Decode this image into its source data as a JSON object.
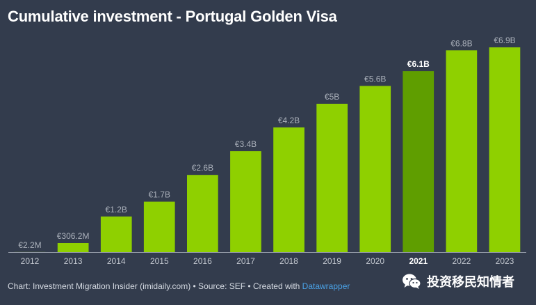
{
  "title": "Cumulative investment - Portugal Golden Visa",
  "footer": {
    "prefix": "Chart: Investment Migration Insider (imidaily.com) • Source: SEF • Created with ",
    "link": "Datawrapper"
  },
  "watermark": {
    "icon": "wechat-icon",
    "text": "投资移民知情者"
  },
  "colors": {
    "background": "#333c4d",
    "bar": "#8fd000",
    "bar_highlight": "#5f9e00",
    "value_label": "#a9afb9",
    "value_label_highlight": "#ffffff",
    "axis_label": "#c3c8d0",
    "axis_label_highlight": "#ffffff",
    "baseline": "#9aa1ad"
  },
  "chart_data": {
    "type": "bar",
    "title": "Cumulative investment - Portugal Golden Visa",
    "categories": [
      "2012",
      "2013",
      "2014",
      "2015",
      "2016",
      "2017",
      "2018",
      "2019",
      "2020",
      "2021",
      "2022",
      "2023"
    ],
    "values": [
      0.0022,
      0.3062,
      1.2,
      1.7,
      2.6,
      3.4,
      4.2,
      5.0,
      5.6,
      6.1,
      6.8,
      6.9
    ],
    "value_labels": [
      "€2.2M",
      "€306.2M",
      "€1.2B",
      "€1.7B",
      "€2.6B",
      "€3.4B",
      "€4.2B",
      "€5B",
      "€5.6B",
      "€6.1B",
      "€6.8B",
      "€6.9B"
    ],
    "highlight": "2021",
    "unit": "€ billion",
    "xlabel": "",
    "ylabel": "",
    "ylim": [
      0,
      6.9
    ],
    "grid": false,
    "legend": "none"
  }
}
